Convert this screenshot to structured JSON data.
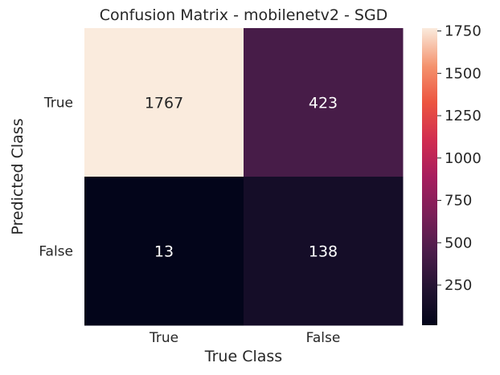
{
  "chart_data": {
    "type": "heatmap",
    "title": "Confusion Matrix - mobilenetv2 - SGD",
    "xlabel": "True Class",
    "ylabel": "Predicted Class",
    "x_categories": [
      "True",
      "False"
    ],
    "y_categories": [
      "True",
      "False"
    ],
    "values": [
      [
        1767,
        423
      ],
      [
        13,
        138
      ]
    ],
    "colormap": "rocket",
    "colorbar": {
      "range": [
        13,
        1767
      ],
      "ticks": [
        250,
        500,
        750,
        1000,
        1250,
        1500,
        1750
      ],
      "tick_labels": [
        "250",
        "500",
        "750",
        "1000",
        "1250",
        "1500",
        "1750"
      ]
    },
    "annotation_colors": {
      "on_dark": "#ffffff",
      "on_light": "#262626"
    }
  }
}
